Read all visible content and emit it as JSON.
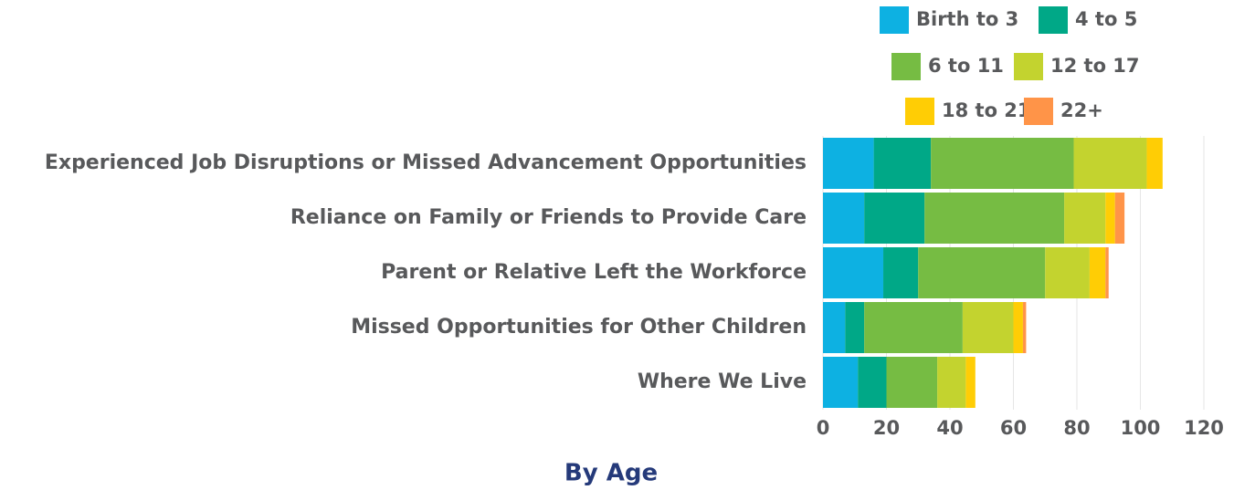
{
  "chart_data": {
    "type": "stacked_bar_horizontal",
    "title": "By Age",
    "categories": [
      "Experienced Job Disruptions or Missed Advancement Opportunities",
      "Reliance on Family or Friends to Provide Care",
      "Parent or Relative Left the Workforce",
      "Missed Opportunities for Other Children",
      "Where We Live"
    ],
    "series": [
      {
        "name": "Birth to 3",
        "color": "#0db1e2",
        "values": [
          16,
          13,
          19,
          7,
          11
        ]
      },
      {
        "name": "4 to 5",
        "color": "#00a887",
        "values": [
          18,
          19,
          11,
          6,
          9
        ]
      },
      {
        "name": "6 to 11",
        "color": "#76bc43",
        "values": [
          45,
          44,
          40,
          31,
          16
        ]
      },
      {
        "name": "12 to 17",
        "color": "#c3d32f",
        "values": [
          23,
          13,
          14,
          16,
          9
        ]
      },
      {
        "name": "18 to 21",
        "color": "#ffcd05",
        "values": [
          5,
          3,
          5,
          3,
          3
        ]
      },
      {
        "name": "22+",
        "color": "#ff9448",
        "values": [
          0,
          3,
          1,
          1,
          0
        ]
      }
    ],
    "xlim": [
      0,
      120
    ],
    "xticks": [
      0,
      20,
      40,
      60,
      80,
      100,
      120
    ],
    "grid": true
  }
}
